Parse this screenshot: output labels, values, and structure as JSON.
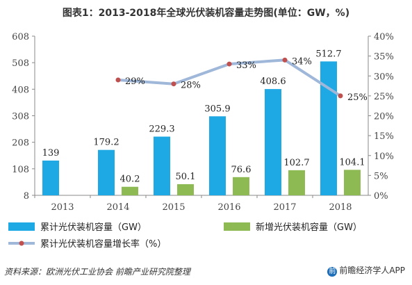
{
  "title": "图表1：2013-2018年全球光伏装机容量走势图(单位：GW，%)",
  "source": "资料来源：欧洲光伏工业协会 前瞻产业研究院整理",
  "brand": "前瞻经济学人APP",
  "brand_logo_char": "前",
  "colors": {
    "cumulative": "#1fa9e4",
    "new": "#8dba52",
    "growth_line": "#9fb7d9",
    "growth_marker": "#c0504d",
    "axis": "#888888"
  },
  "chart_data": {
    "type": "bar",
    "categories": [
      "2013",
      "2014",
      "2015",
      "2016",
      "2017",
      "2018"
    ],
    "series": [
      {
        "name": "累计光伏装机容量（GW）",
        "axis": "left",
        "kind": "bar",
        "values": [
          139,
          179.2,
          229.3,
          305.9,
          408.6,
          512.7
        ],
        "labels": [
          "139",
          "179.2",
          "229.3",
          "305.9",
          "408.6",
          "512.7"
        ]
      },
      {
        "name": "新增光伏装机容量（GW）",
        "axis": "left",
        "kind": "bar",
        "values": [
          null,
          40.2,
          50.1,
          76.6,
          102.7,
          104.1
        ],
        "labels": [
          "",
          "40.2",
          "50.1",
          "76.6",
          "102.7",
          "104.1"
        ]
      },
      {
        "name": "累计光伏装机容量增长率（%）",
        "axis": "right",
        "kind": "line",
        "values": [
          null,
          29,
          28,
          33,
          34,
          25
        ],
        "labels": [
          "",
          "29%",
          "28%",
          "33%",
          "34%",
          "25%"
        ]
      }
    ],
    "y_left": {
      "ylim": [
        8,
        608
      ],
      "ticks": [
        "8",
        "108",
        "208",
        "308",
        "408",
        "508",
        "608"
      ]
    },
    "y_right": {
      "ylim": [
        0,
        40
      ],
      "ticks": [
        "0%",
        "5%",
        "10%",
        "15%",
        "20%",
        "25%",
        "30%",
        "35%",
        "40%"
      ]
    },
    "grid": false,
    "legend_position": "bottom"
  }
}
